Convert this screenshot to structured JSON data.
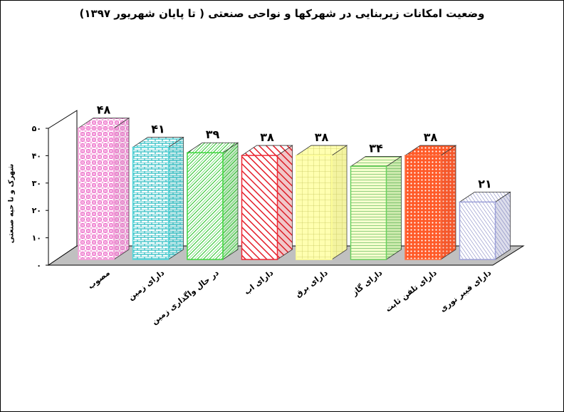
{
  "chart_data": {
    "type": "bar",
    "title": "وضعیت امکانات زیربنایی در شهرکها و نواحی صنعتی ( تا پایان شهریور ۱۳۹۷)",
    "ylabel": "شهرک و نا حیه صنعتی",
    "xlabel": "",
    "ylim": [
      0,
      50
    ],
    "yticks": [
      0,
      10,
      20,
      30,
      40,
      50
    ],
    "ytick_labels": [
      "۰",
      "۱۰",
      "۲۰",
      "۳۰",
      "۴۰",
      "۵۰"
    ],
    "categories": [
      "مصوب",
      "دارای زمین",
      "در حال واگذاری زمین",
      "دارای اب",
      "دارای برق",
      "دارای گاز",
      "دارای تلفن ثابت",
      "دارای فیبر نوری"
    ],
    "values": [
      48,
      41,
      39,
      38,
      38,
      34,
      38,
      21
    ],
    "value_labels": [
      "۴۸",
      "۴۱",
      "۳۹",
      "۳۸",
      "۳۸",
      "۳۴",
      "۳۸",
      "۲۱"
    ],
    "colors": [
      "#f59fd9",
      "#5ad8dc",
      "#3fd83f",
      "#ee2a35",
      "#ffff96",
      "#6bd15e",
      "#ff7040",
      "#9ca0d8"
    ],
    "grid": false,
    "legend": "none"
  }
}
